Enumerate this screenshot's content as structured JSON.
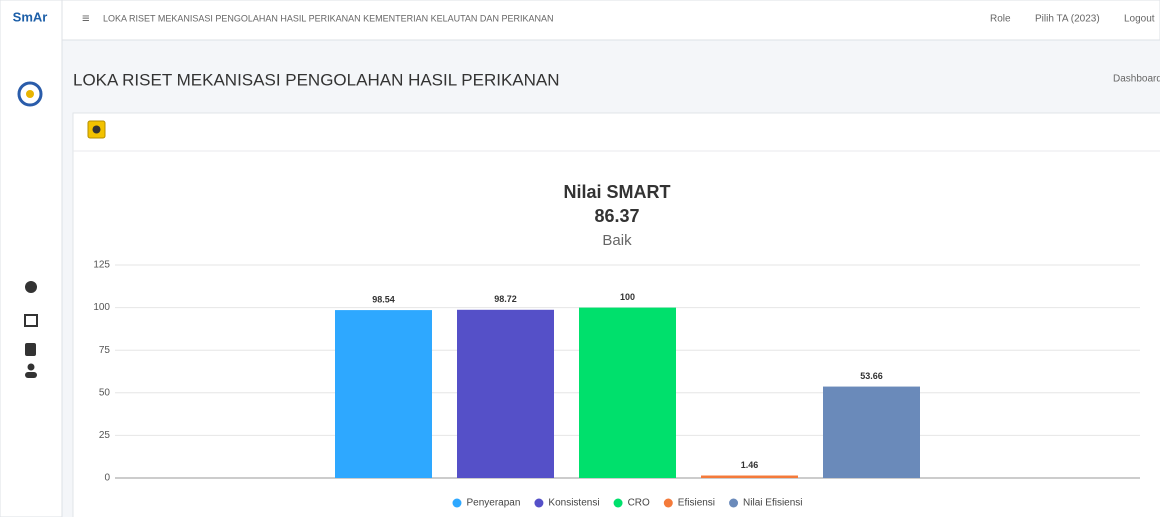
{
  "navbar": {
    "logo": "SmAr",
    "title": "LOKA RISET MEKANISASI PENGOLAHAN HASIL PERIKANAN KEMENTERIAN KELAUTAN DAN PERIKANAN",
    "items": [
      "Role",
      "Pilih TA (2023)",
      "Logout"
    ]
  },
  "page": {
    "heading": "LOKA RISET MEKANISASI PENGOLAHAN HASIL PERIKANAN",
    "breadcrumb": "Dashboard"
  },
  "chart_data": {
    "type": "bar",
    "title": "Nilai SMART",
    "subtitle": [
      "86.37",
      "Baik"
    ],
    "categories": [
      null
    ],
    "series": [
      {
        "name": "Penyerapan",
        "color": "#2ea8ff",
        "values": [
          98.54
        ]
      },
      {
        "name": "Konsistensi",
        "color": "#5550c8",
        "values": [
          98.72
        ]
      },
      {
        "name": "CRO",
        "color": "#00e06c",
        "values": [
          100
        ]
      },
      {
        "name": "Efisiensi",
        "color": "#f47a3a",
        "values": [
          1.46
        ]
      },
      {
        "name": "Nilai Efisiensi",
        "color": "#6a8aba",
        "values": [
          53.66
        ]
      }
    ],
    "ylim": [
      0,
      125
    ],
    "yticks": [
      0,
      25,
      50,
      75,
      100,
      125
    ],
    "grid": true,
    "legend": "bottom"
  }
}
